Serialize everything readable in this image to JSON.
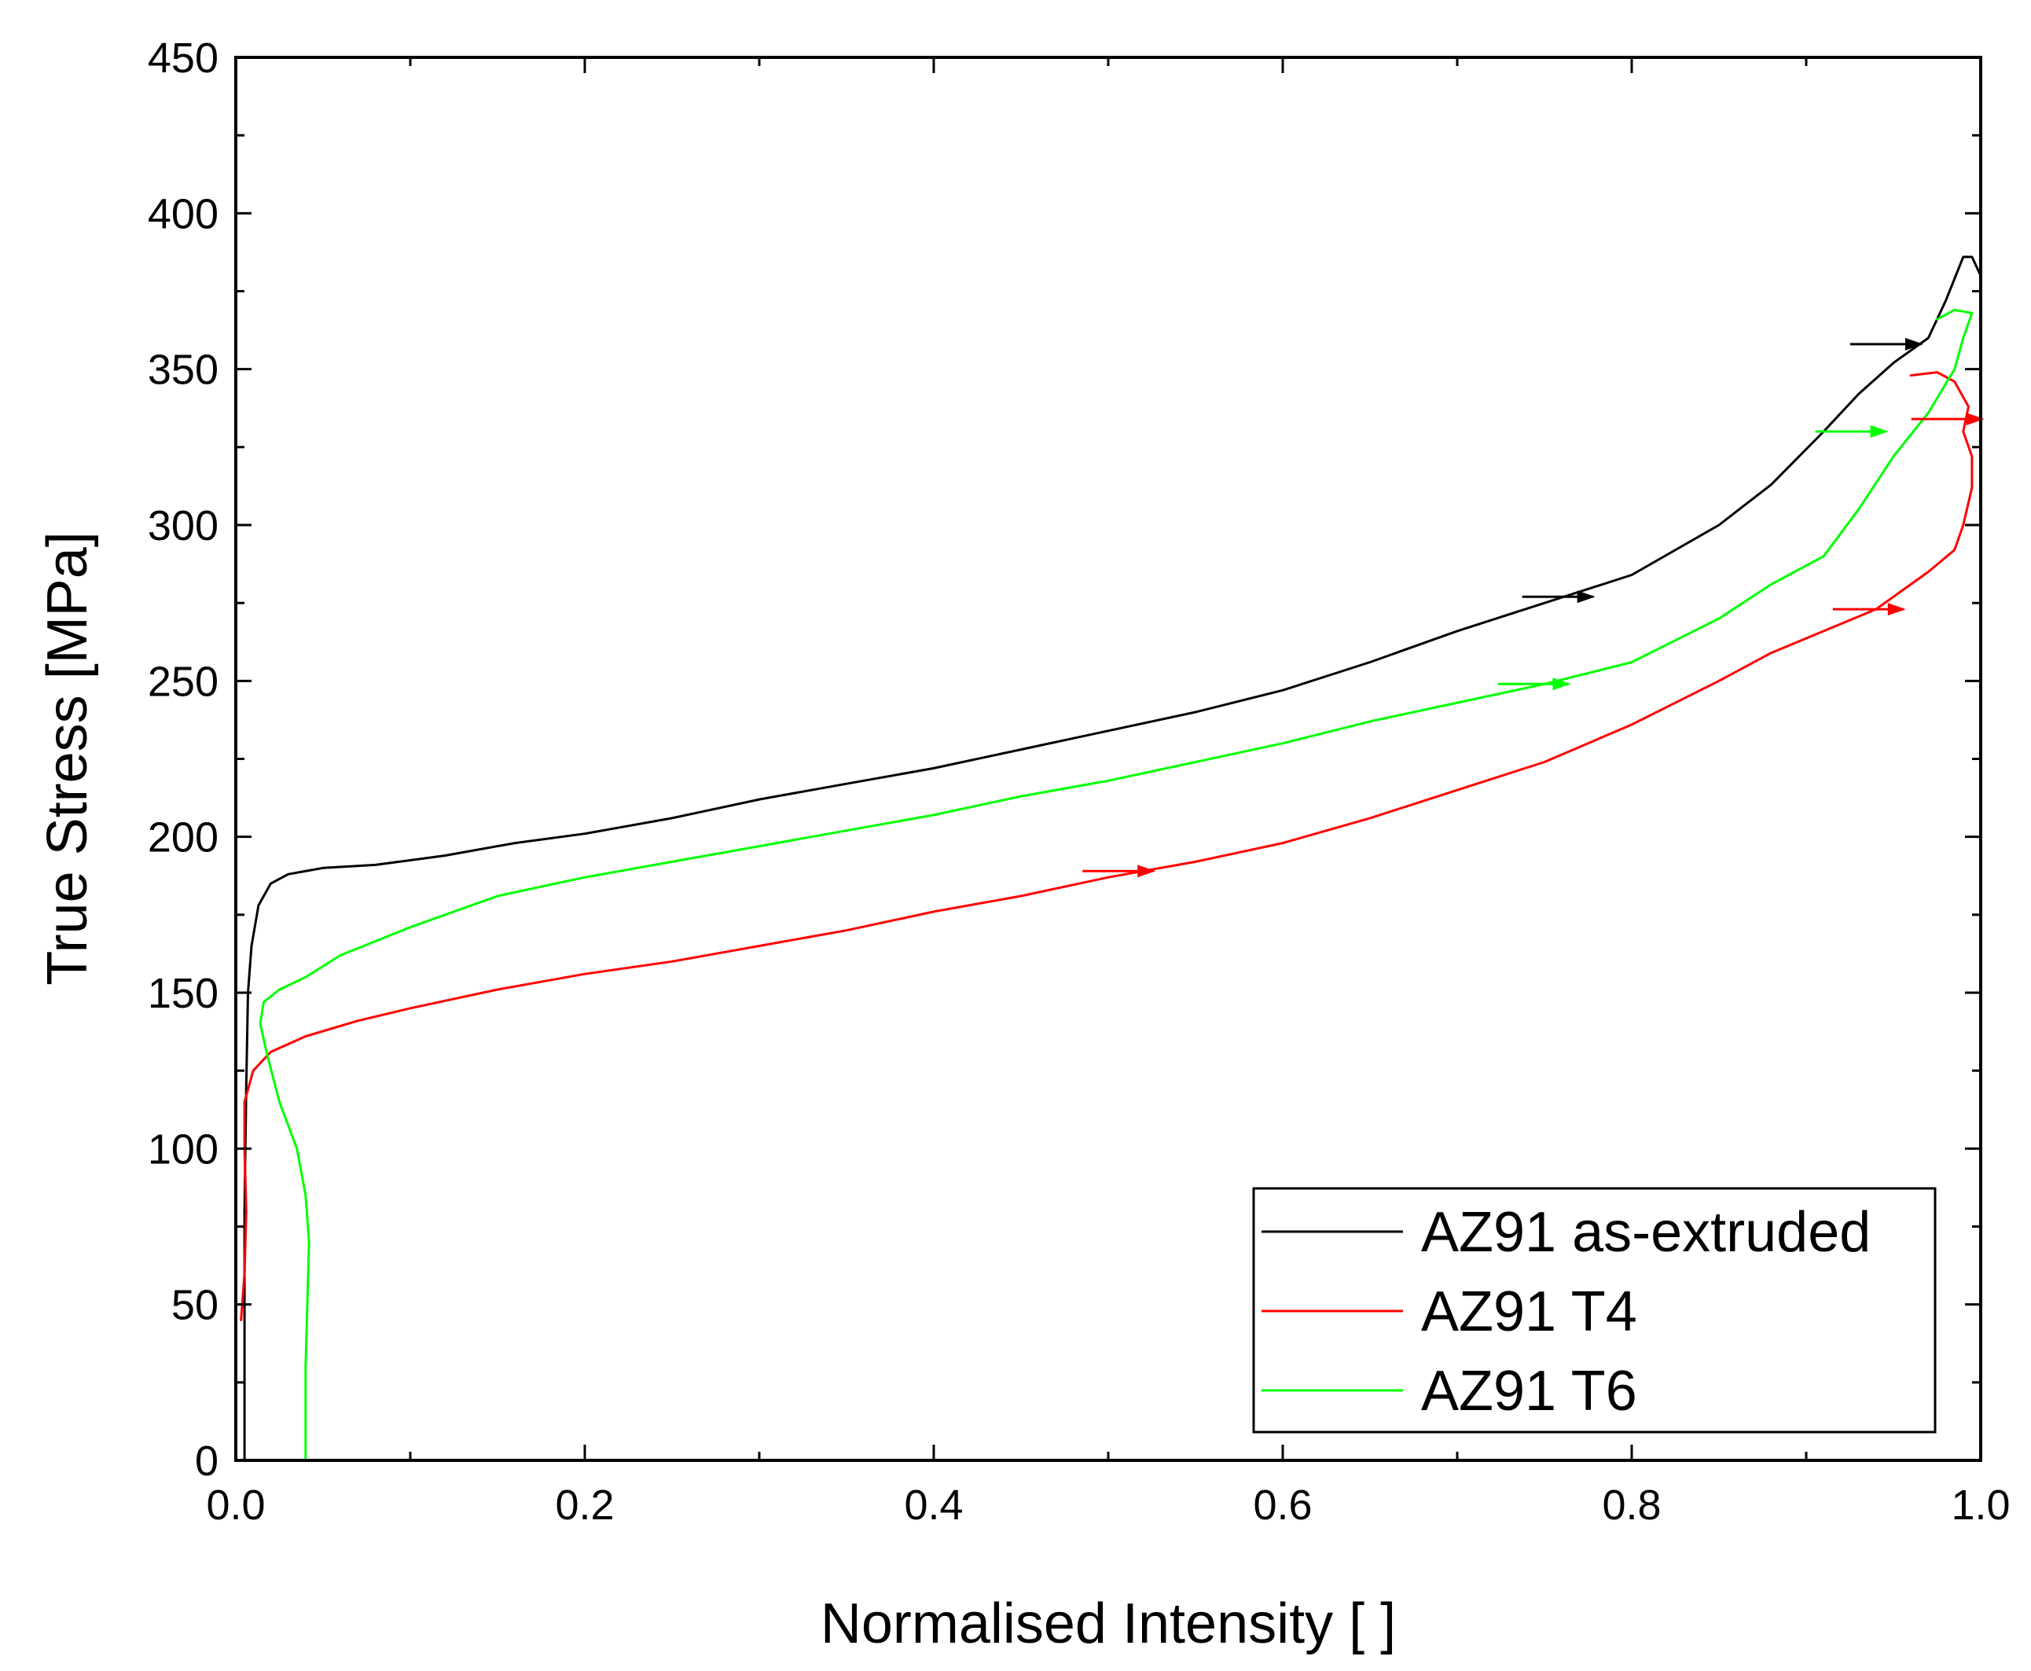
{
  "chart_data": {
    "type": "line",
    "title": "",
    "xlabel": "Normalised Intensity [ ]",
    "ylabel": "True Stress [MPa]",
    "xlim": [
      0.0,
      1.0
    ],
    "ylim": [
      0,
      450
    ],
    "x_ticks": [
      0.0,
      0.2,
      0.4,
      0.6,
      0.8,
      1.0
    ],
    "x_tick_labels": [
      "0.0",
      "0.2",
      "0.4",
      "0.6",
      "0.8",
      "1.0"
    ],
    "x_minor_ticks": [
      0.1,
      0.3,
      0.5,
      0.7,
      0.9
    ],
    "y_ticks": [
      0,
      50,
      100,
      150,
      200,
      250,
      300,
      350,
      400,
      450
    ],
    "y_tick_labels": [
      "0",
      "50",
      "100",
      "150",
      "200",
      "250",
      "300",
      "350",
      "400",
      "450"
    ],
    "y_minor_ticks": [
      25,
      75,
      125,
      175,
      225,
      275,
      325,
      375,
      425
    ],
    "grid": false,
    "legend_position": "bottom-right",
    "series": [
      {
        "name": "AZ91 as-extruded",
        "color": "#000000",
        "points": [
          [
            0.005,
            0
          ],
          [
            0.005,
            40
          ],
          [
            0.005,
            80
          ],
          [
            0.006,
            120
          ],
          [
            0.007,
            150
          ],
          [
            0.009,
            165
          ],
          [
            0.013,
            178
          ],
          [
            0.02,
            185
          ],
          [
            0.03,
            188
          ],
          [
            0.05,
            190
          ],
          [
            0.08,
            191
          ],
          [
            0.12,
            194
          ],
          [
            0.16,
            198
          ],
          [
            0.2,
            201
          ],
          [
            0.25,
            206
          ],
          [
            0.3,
            212
          ],
          [
            0.35,
            217
          ],
          [
            0.4,
            222
          ],
          [
            0.45,
            228
          ],
          [
            0.5,
            234
          ],
          [
            0.55,
            240
          ],
          [
            0.6,
            247
          ],
          [
            0.65,
            256
          ],
          [
            0.7,
            266
          ],
          [
            0.75,
            275
          ],
          [
            0.8,
            284
          ],
          [
            0.85,
            300
          ],
          [
            0.88,
            313
          ],
          [
            0.91,
            330
          ],
          [
            0.93,
            342
          ],
          [
            0.95,
            352
          ],
          [
            0.97,
            360
          ],
          [
            0.98,
            372
          ],
          [
            0.99,
            386
          ],
          [
            0.995,
            386
          ],
          [
            1.0,
            380
          ]
        ]
      },
      {
        "name": "AZ91 T4",
        "color": "#ff0000",
        "points": [
          [
            0.003,
            45
          ],
          [
            0.005,
            60
          ],
          [
            0.006,
            80
          ],
          [
            0.005,
            100
          ],
          [
            0.005,
            115
          ],
          [
            0.01,
            125
          ],
          [
            0.02,
            131
          ],
          [
            0.04,
            136
          ],
          [
            0.07,
            141
          ],
          [
            0.1,
            145
          ],
          [
            0.15,
            151
          ],
          [
            0.2,
            156
          ],
          [
            0.25,
            160
          ],
          [
            0.3,
            165
          ],
          [
            0.35,
            170
          ],
          [
            0.4,
            176
          ],
          [
            0.45,
            181
          ],
          [
            0.5,
            187
          ],
          [
            0.55,
            192
          ],
          [
            0.6,
            198
          ],
          [
            0.65,
            206
          ],
          [
            0.7,
            215
          ],
          [
            0.75,
            224
          ],
          [
            0.8,
            236
          ],
          [
            0.85,
            250
          ],
          [
            0.88,
            259
          ],
          [
            0.91,
            266
          ],
          [
            0.94,
            273
          ],
          [
            0.97,
            285
          ],
          [
            0.985,
            292
          ],
          [
            0.99,
            300
          ],
          [
            0.995,
            312
          ],
          [
            0.995,
            322
          ],
          [
            0.99,
            330
          ],
          [
            0.993,
            338
          ],
          [
            0.985,
            346
          ],
          [
            0.975,
            349
          ],
          [
            0.96,
            348
          ]
        ]
      },
      {
        "name": "AZ91 T6",
        "color": "#00ff00",
        "points": [
          [
            0.04,
            0
          ],
          [
            0.04,
            30
          ],
          [
            0.042,
            70
          ],
          [
            0.04,
            85
          ],
          [
            0.035,
            100
          ],
          [
            0.025,
            115
          ],
          [
            0.018,
            130
          ],
          [
            0.014,
            140
          ],
          [
            0.016,
            147
          ],
          [
            0.025,
            151
          ],
          [
            0.04,
            155
          ],
          [
            0.06,
            162
          ],
          [
            0.1,
            171
          ],
          [
            0.15,
            181
          ],
          [
            0.2,
            187
          ],
          [
            0.25,
            192
          ],
          [
            0.3,
            197
          ],
          [
            0.35,
            202
          ],
          [
            0.4,
            207
          ],
          [
            0.45,
            213
          ],
          [
            0.5,
            218
          ],
          [
            0.55,
            224
          ],
          [
            0.6,
            230
          ],
          [
            0.65,
            237
          ],
          [
            0.7,
            243
          ],
          [
            0.75,
            249
          ],
          [
            0.8,
            256
          ],
          [
            0.85,
            270
          ],
          [
            0.88,
            281
          ],
          [
            0.91,
            290
          ],
          [
            0.93,
            305
          ],
          [
            0.95,
            322
          ],
          [
            0.97,
            336
          ],
          [
            0.985,
            350
          ],
          [
            0.99,
            360
          ],
          [
            0.995,
            368
          ],
          [
            0.985,
            369
          ],
          [
            0.975,
            366
          ]
        ]
      }
    ],
    "markers": [
      {
        "series": "AZ91 as-extruded",
        "x": 0.762,
        "y": 277
      },
      {
        "series": "AZ91 as-extruded",
        "x": 0.95,
        "y": 358
      },
      {
        "series": "AZ91 T4",
        "x": 0.51,
        "y": 189
      },
      {
        "series": "AZ91 T4",
        "x": 0.94,
        "y": 273
      },
      {
        "series": "AZ91 T4",
        "x": 0.985,
        "y": 334
      },
      {
        "series": "AZ91 T6",
        "x": 0.748,
        "y": 249
      },
      {
        "series": "AZ91 T6",
        "x": 0.93,
        "y": 330
      }
    ]
  }
}
